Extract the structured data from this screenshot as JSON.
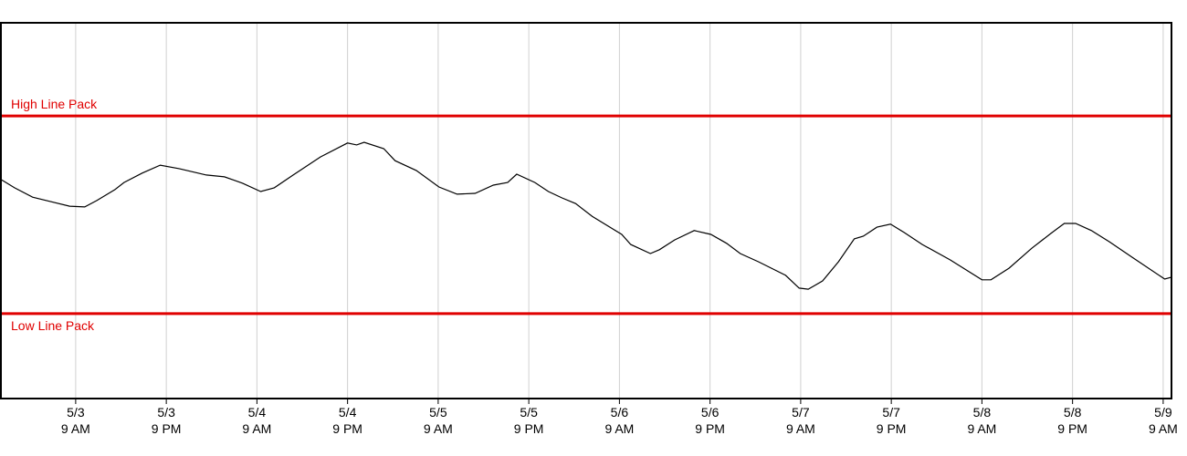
{
  "chart_data": {
    "type": "line",
    "xlim": [
      -9.9,
      145.1
    ],
    "ylim": [
      0,
      100
    ],
    "xticks": [
      {
        "value": 0,
        "label": [
          "5/3",
          "9 AM"
        ]
      },
      {
        "value": 12,
        "label": [
          "5/3",
          "9 PM"
        ]
      },
      {
        "value": 24,
        "label": [
          "5/4",
          "9 AM"
        ]
      },
      {
        "value": 36,
        "label": [
          "5/4",
          "9 PM"
        ]
      },
      {
        "value": 48,
        "label": [
          "5/5",
          "9 AM"
        ]
      },
      {
        "value": 60,
        "label": [
          "5/5",
          "9 PM"
        ]
      },
      {
        "value": 72,
        "label": [
          "5/6",
          "9 AM"
        ]
      },
      {
        "value": 84,
        "label": [
          "5/6",
          "9 PM"
        ]
      },
      {
        "value": 96,
        "label": [
          "5/7",
          "9 AM"
        ]
      },
      {
        "value": 108,
        "label": [
          "5/7",
          "9 PM"
        ]
      },
      {
        "value": 120,
        "label": [
          "5/8",
          "9 AM"
        ]
      },
      {
        "value": 132,
        "label": [
          "5/8",
          "9 PM"
        ]
      },
      {
        "value": 144,
        "label": [
          "5/9",
          "9 AM"
        ]
      }
    ],
    "grid": true,
    "reference_lines": [
      {
        "label": "High Line Pack",
        "value": 75.2,
        "color": "#e00000"
      },
      {
        "label": "Low Line Pack",
        "value": 22.6,
        "color": "#e00000"
      }
    ],
    "series": [
      {
        "color": "#000000",
        "x": [
          -9.9,
          -8.1,
          -5.7,
          -3.3,
          -0.8,
          1.2,
          2.8,
          5.2,
          6.4,
          8.8,
          11.2,
          13.7,
          17.3,
          19.7,
          22.1,
          24.5,
          26.3,
          28.8,
          32.4,
          36.0,
          37.2,
          38.2,
          40.8,
          42.3,
          45.1,
          48.1,
          50.5,
          52.9,
          55.3,
          57.2,
          58.4,
          60.8,
          62.6,
          64.4,
          66.2,
          68.4,
          72.3,
          73.5,
          76.1,
          77.3,
          79.3,
          81.9,
          84.1,
          86.2,
          88.0,
          90.4,
          94.0,
          95.8,
          97.0,
          98.9,
          101.0,
          103.1,
          104.3,
          106.1,
          107.9,
          109.7,
          112.1,
          115.8,
          120.0,
          121.2,
          123.6,
          126.6,
          129.1,
          130.9,
          132.4,
          134.5,
          136.9,
          139.9,
          144.2,
          145.1
        ],
        "values": [
          58.3,
          56.1,
          53.6,
          52.4,
          51.2,
          51.0,
          52.7,
          55.6,
          57.5,
          60.0,
          62.1,
          61.2,
          59.5,
          59.0,
          57.3,
          55.1,
          56.1,
          59.5,
          64.3,
          68.0,
          67.5,
          68.2,
          66.5,
          63.3,
          60.7,
          56.3,
          54.4,
          54.6,
          56.8,
          57.5,
          59.7,
          57.5,
          55.1,
          53.4,
          51.9,
          48.5,
          43.7,
          41.0,
          38.6,
          39.6,
          42.2,
          44.7,
          43.7,
          41.3,
          38.6,
          36.4,
          32.8,
          29.4,
          29.1,
          31.3,
          36.4,
          42.5,
          43.2,
          45.6,
          46.4,
          44.2,
          41.0,
          36.9,
          31.6,
          31.6,
          34.7,
          40.0,
          43.9,
          46.6,
          46.6,
          44.7,
          41.7,
          37.6,
          31.8,
          32.3
        ]
      }
    ]
  }
}
